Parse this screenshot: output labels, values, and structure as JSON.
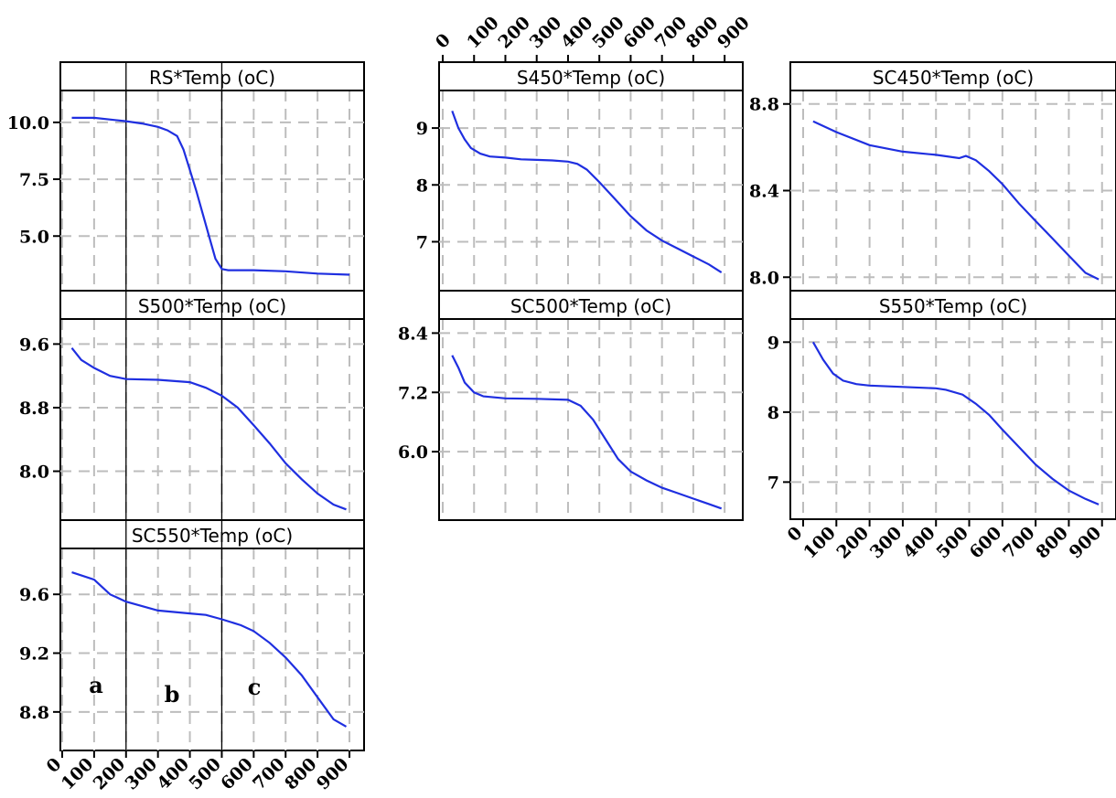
{
  "figure": {
    "x_ticks": [
      "0",
      "100",
      "200",
      "300",
      "400",
      "500",
      "600",
      "700",
      "800",
      "900"
    ]
  },
  "chart_data": [
    {
      "type": "line",
      "title": "RS*Temp (oC)",
      "xlim": [
        0,
        920
      ],
      "ylim": [
        3.0,
        11.0
      ],
      "yticks": [
        5.0,
        7.5,
        10.0
      ],
      "ytick_labels": [
        "5.0",
        "7.5",
        "10.0"
      ],
      "x": [
        30,
        100,
        200,
        250,
        300,
        330,
        360,
        380,
        400,
        420,
        440,
        460,
        480,
        500,
        520,
        600,
        700,
        800,
        900
      ],
      "y": [
        10.2,
        10.2,
        10.05,
        9.95,
        9.8,
        9.65,
        9.4,
        8.8,
        7.9,
        7.0,
        6.0,
        5.0,
        4.0,
        3.55,
        3.5,
        3.5,
        3.45,
        3.35,
        3.3
      ],
      "vlines": [
        200,
        500
      ],
      "x_axis": "none"
    },
    {
      "type": "line",
      "title": "S450*Temp (oC)",
      "xlim": [
        0,
        920
      ],
      "ylim": [
        6.3,
        9.5
      ],
      "yticks": [
        7,
        8,
        9
      ],
      "ytick_labels": [
        "7",
        "8",
        "9"
      ],
      "x": [
        30,
        50,
        70,
        90,
        120,
        150,
        200,
        250,
        300,
        350,
        400,
        430,
        460,
        500,
        550,
        600,
        650,
        700,
        750,
        800,
        850,
        890
      ],
      "y": [
        9.3,
        9.0,
        8.8,
        8.65,
        8.55,
        8.5,
        8.48,
        8.45,
        8.44,
        8.43,
        8.41,
        8.37,
        8.27,
        8.05,
        7.75,
        7.45,
        7.2,
        7.02,
        6.88,
        6.74,
        6.6,
        6.46
      ],
      "x_axis": "top"
    },
    {
      "type": "line",
      "title": "SC450*Temp (oC)",
      "xlim": [
        0,
        920
      ],
      "ylim": [
        7.98,
        8.82
      ],
      "yticks": [
        8.0,
        8.4,
        8.8
      ],
      "ytick_labels": [
        "8.0",
        "8.4",
        "8.8"
      ],
      "x": [
        30,
        100,
        200,
        300,
        400,
        470,
        490,
        520,
        560,
        600,
        650,
        700,
        750,
        800,
        850,
        890
      ],
      "y": [
        8.72,
        8.67,
        8.61,
        8.58,
        8.565,
        8.55,
        8.56,
        8.54,
        8.49,
        8.43,
        8.34,
        8.26,
        8.18,
        8.1,
        8.02,
        7.99
      ],
      "x_axis": "none"
    },
    {
      "type": "line",
      "title": "S500*Temp (oC)",
      "xlim": [
        0,
        920
      ],
      "ylim": [
        7.5,
        9.8
      ],
      "yticks": [
        8.0,
        8.8,
        9.6
      ],
      "ytick_labels": [
        "8.0",
        "8.8",
        "9.6"
      ],
      "x": [
        30,
        60,
        100,
        150,
        200,
        300,
        400,
        450,
        500,
        550,
        600,
        650,
        700,
        750,
        800,
        850,
        890
      ],
      "y": [
        9.55,
        9.4,
        9.3,
        9.2,
        9.16,
        9.15,
        9.12,
        9.05,
        8.95,
        8.8,
        8.58,
        8.35,
        8.1,
        7.9,
        7.72,
        7.58,
        7.52
      ],
      "vlines": [
        200,
        500
      ],
      "x_axis": "none"
    },
    {
      "type": "line",
      "title": "SC500*Temp (oC)",
      "xlim": [
        0,
        920
      ],
      "ylim": [
        4.8,
        8.5
      ],
      "yticks": [
        6.0,
        7.2,
        8.4
      ],
      "ytick_labels": [
        "6.0",
        "7.2",
        "8.4"
      ],
      "x": [
        30,
        50,
        70,
        100,
        130,
        200,
        300,
        400,
        440,
        480,
        520,
        560,
        600,
        650,
        700,
        750,
        800,
        850,
        890
      ],
      "y": [
        7.95,
        7.7,
        7.4,
        7.2,
        7.12,
        7.08,
        7.07,
        7.05,
        6.93,
        6.65,
        6.25,
        5.85,
        5.6,
        5.42,
        5.27,
        5.16,
        5.05,
        4.94,
        4.85
      ],
      "x_axis": "none"
    },
    {
      "type": "line",
      "title": "S550*Temp (oC)",
      "xlim": [
        0,
        920
      ],
      "ylim": [
        6.6,
        9.2
      ],
      "yticks": [
        7,
        8,
        9
      ],
      "ytick_labels": [
        "7",
        "8",
        "9"
      ],
      "x": [
        30,
        60,
        90,
        120,
        160,
        200,
        300,
        400,
        430,
        480,
        520,
        560,
        600,
        650,
        700,
        750,
        800,
        850,
        890
      ],
      "y": [
        9.0,
        8.75,
        8.55,
        8.45,
        8.4,
        8.38,
        8.36,
        8.34,
        8.32,
        8.25,
        8.12,
        7.96,
        7.75,
        7.5,
        7.25,
        7.05,
        6.88,
        6.76,
        6.68
      ],
      "x_axis": "bottom"
    },
    {
      "type": "line",
      "title": "SC550*Temp (oC)",
      "xlim": [
        0,
        920
      ],
      "ylim": [
        8.6,
        9.85
      ],
      "yticks": [
        8.8,
        9.2,
        9.6
      ],
      "ytick_labels": [
        "8.8",
        "9.2",
        "9.6"
      ],
      "x": [
        30,
        100,
        150,
        200,
        300,
        400,
        450,
        500,
        560,
        600,
        650,
        700,
        750,
        800,
        850,
        890
      ],
      "y": [
        9.75,
        9.7,
        9.6,
        9.55,
        9.49,
        9.47,
        9.46,
        9.43,
        9.39,
        9.35,
        9.27,
        9.17,
        9.05,
        8.9,
        8.75,
        8.7
      ],
      "vlines": [
        200,
        500
      ],
      "annotations": [
        "a",
        "b",
        "c"
      ],
      "x_axis": "bottom"
    }
  ]
}
